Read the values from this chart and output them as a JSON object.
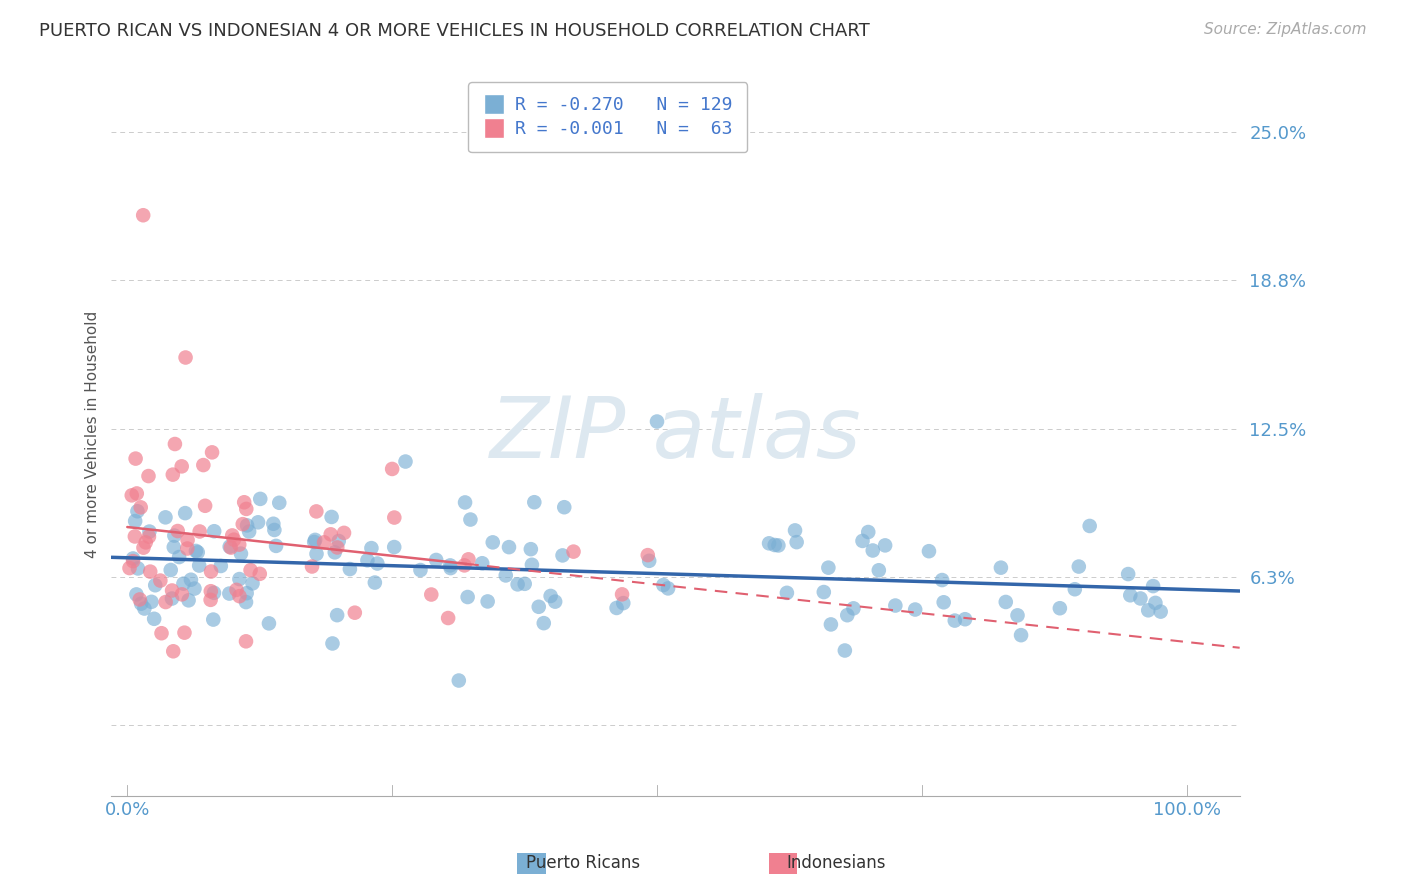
{
  "title": "PUERTO RICAN VS INDONESIAN 4 OR MORE VEHICLES IN HOUSEHOLD CORRELATION CHART",
  "source": "Source: ZipAtlas.com",
  "ylabel": "4 or more Vehicles in Household",
  "yticks": [
    0.0,
    0.0625,
    0.125,
    0.1875,
    0.25
  ],
  "ytick_labels": [
    "",
    "6.3%",
    "12.5%",
    "18.8%",
    "25.0%"
  ],
  "xtick_labels": [
    "0.0%",
    "100.0%"
  ],
  "xlim": [
    -0.015,
    1.05
  ],
  "ylim": [
    -0.03,
    0.275
  ],
  "legend_text_1": "R = -0.270   N = 129",
  "legend_text_2": "R = -0.001   N =  63",
  "color_blue": "#7BAFD4",
  "color_pink": "#F08090",
  "color_trend_blue": "#3366AA",
  "color_trend_pink": "#E06070",
  "color_grid": "#CCCCCC",
  "color_axis_text": "#5599CC",
  "watermark_text": "ZIPatlas",
  "legend_pr": "Puerto Ricans",
  "legend_ind": "Indonesians",
  "title_fontsize": 13,
  "source_fontsize": 11,
  "tick_fontsize": 13
}
